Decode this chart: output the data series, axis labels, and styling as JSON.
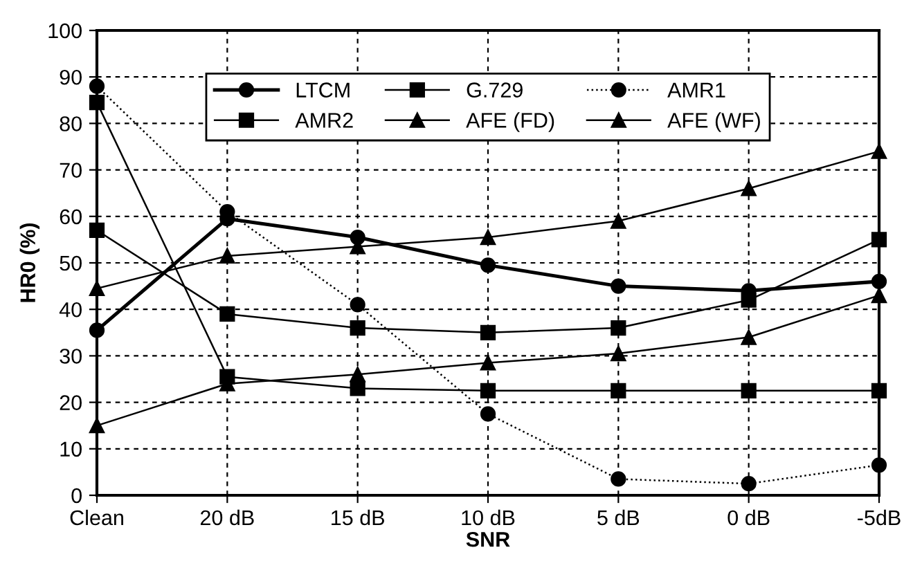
{
  "chart_data": {
    "type": "line",
    "xlabel": "SNR",
    "ylabel": "HR0 (%)",
    "categories": [
      "Clean",
      "20 dB",
      "15 dB",
      "10 dB",
      "5 dB",
      "0 dB",
      "-5dB"
    ],
    "ylim": [
      0,
      100
    ],
    "yticks": [
      0,
      10,
      20,
      30,
      40,
      50,
      60,
      70,
      80,
      90,
      100
    ],
    "grid": true,
    "legend": "top",
    "series": [
      {
        "name": "LTCM",
        "color": "#000000",
        "marker": "circle",
        "line_style": "solid",
        "values": [
          35.5,
          59.5,
          55.5,
          49.5,
          45,
          44,
          46
        ]
      },
      {
        "name": "G.729",
        "color": "#000000",
        "marker": "square",
        "line_style": "solid",
        "values": [
          84.5,
          25.5,
          23,
          22.5,
          22.5,
          22.5,
          22.5
        ]
      },
      {
        "name": "AMR1",
        "color": "#000000",
        "marker": "circle",
        "line_style": "dotted",
        "values": [
          88,
          61,
          41,
          17.5,
          3.5,
          2.5,
          6.5
        ]
      },
      {
        "name": "AMR2",
        "color": "#000000",
        "marker": "square",
        "line_style": "solid",
        "values": [
          57,
          39,
          36,
          35,
          36,
          42,
          55
        ]
      },
      {
        "name": "AFE (FD)",
        "color": "#000000",
        "marker": "triangle",
        "line_style": "solid",
        "values": [
          15,
          24,
          26,
          28.5,
          30.5,
          34,
          43
        ]
      },
      {
        "name": "AFE (WF)",
        "color": "#000000",
        "marker": "triangle",
        "line_style": "solid",
        "values": [
          44.5,
          51.5,
          53.5,
          55.5,
          59,
          66,
          74
        ]
      }
    ]
  }
}
